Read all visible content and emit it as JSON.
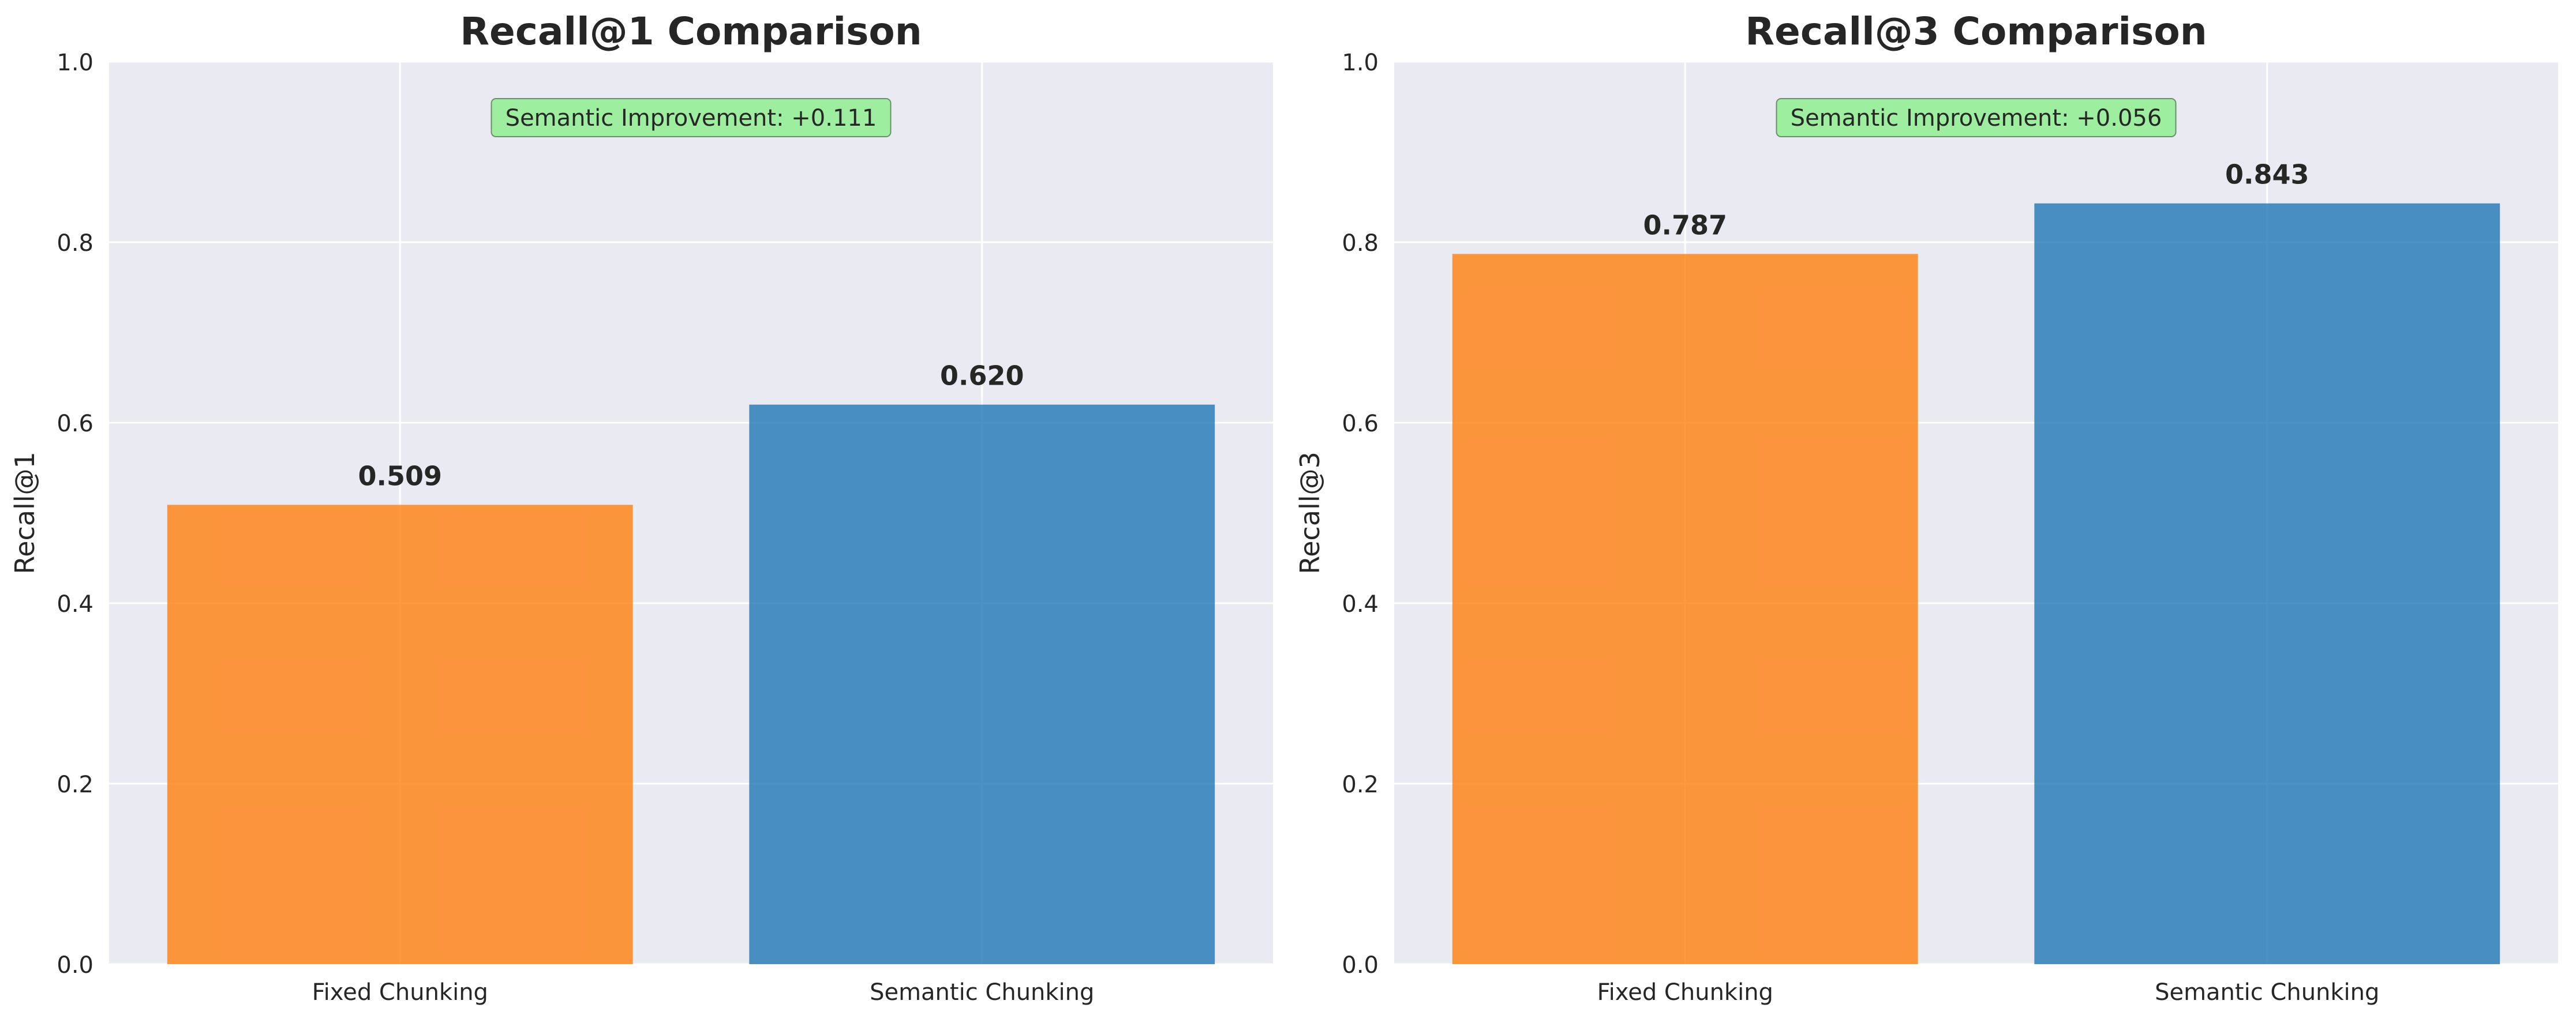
{
  "chart_data": [
    {
      "type": "bar",
      "title": "Recall@1 Comparison",
      "xlabel": "",
      "ylabel": "Recall@1",
      "categories": [
        "Fixed Chunking",
        "Semantic Chunking"
      ],
      "values": [
        0.509,
        0.62
      ],
      "value_labels": [
        "0.509",
        "0.620"
      ],
      "bar_colors": [
        "#ff7f0e",
        "#1f77b4"
      ],
      "ylim": [
        0,
        1.0
      ],
      "yticks": [
        0.0,
        0.2,
        0.4,
        0.6,
        0.8,
        1.0
      ],
      "ytick_labels": [
        "0.0",
        "0.2",
        "0.4",
        "0.6",
        "0.8",
        "1.0"
      ],
      "grid": true,
      "annotation": "Semantic Improvement: +0.111",
      "annotation_color": "#90ee90"
    },
    {
      "type": "bar",
      "title": "Recall@3 Comparison",
      "xlabel": "",
      "ylabel": "Recall@3",
      "categories": [
        "Fixed Chunking",
        "Semantic Chunking"
      ],
      "values": [
        0.787,
        0.843
      ],
      "value_labels": [
        "0.787",
        "0.843"
      ],
      "bar_colors": [
        "#ff7f0e",
        "#1f77b4"
      ],
      "ylim": [
        0,
        1.0
      ],
      "yticks": [
        0.0,
        0.2,
        0.4,
        0.6,
        0.8,
        1.0
      ],
      "ytick_labels": [
        "0.0",
        "0.2",
        "0.4",
        "0.6",
        "0.8",
        "1.0"
      ],
      "grid": true,
      "annotation": "Semantic Improvement: +0.056",
      "annotation_color": "#90ee90"
    }
  ],
  "style": {
    "axes_background": "#eaeaf2",
    "grid_color": "#ffffff",
    "text_color": "#262626"
  }
}
